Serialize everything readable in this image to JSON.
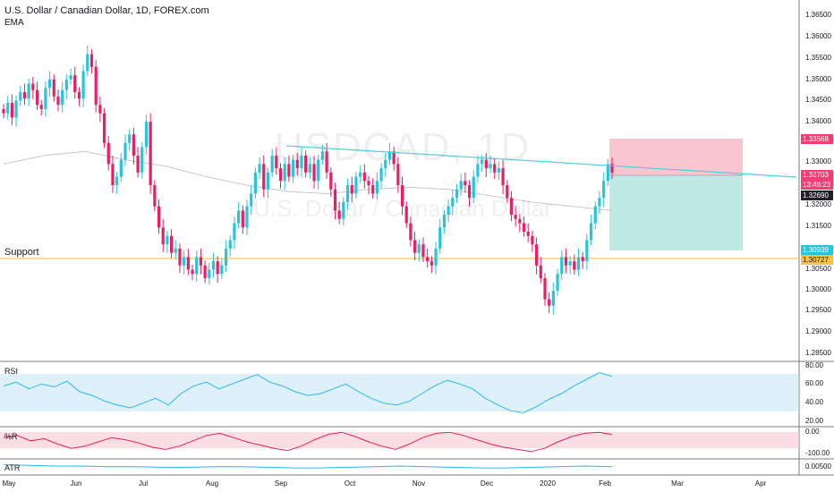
{
  "header": {
    "symbol_line": "U.S. Dollar / Canadian Dollar, 1D, FOREX.com",
    "indicator": "EMA"
  },
  "watermark": {
    "ticker": "USDCAD, 1D",
    "name": "U.S. Dollar / Canadian Dollar"
  },
  "annotations": {
    "support_label": "Support"
  },
  "price_axis": {
    "labels": [
      "1.36500",
      "1.36000",
      "1.35500",
      "1.35000",
      "1.34500",
      "1.34000",
      "1.33500",
      "1.33000",
      "1.32000",
      "1.31500",
      "1.30500",
      "1.30000",
      "1.29500",
      "1.29000",
      "1.28500"
    ]
  },
  "price_badges": [
    {
      "text": "1.33568",
      "color": "#f23f73"
    },
    {
      "text": "1.32703",
      "color": "#f23f73"
    },
    {
      "text": "13:48:23",
      "color": "#f23f73"
    },
    {
      "text": "1.32690",
      "color": "#1f1f29"
    },
    {
      "text": "1.30939",
      "color": "#26c6da"
    },
    {
      "text": "1.30727",
      "color": "#f5c242"
    }
  ],
  "panes": {
    "rsi": {
      "label": "RSI",
      "axis": [
        "80.00",
        "60.00",
        "40.00",
        "20.00"
      ]
    },
    "wr": {
      "label": "%R",
      "axis": [
        "0.00",
        "-100.00"
      ]
    },
    "atr": {
      "label": "ATR",
      "axis": [
        "0.00500"
      ]
    }
  },
  "time_axis": [
    "May",
    "Jun",
    "Jul",
    "Aug",
    "Sep",
    "Oct",
    "Nov",
    "Dec",
    "2020",
    "Feb",
    "Mar",
    "Apr"
  ],
  "colors": {
    "up": "#26c6da",
    "down": "#e91e63",
    "support": "#f5b942",
    "trendline": "#4dd0e1",
    "stop_zone": "#f8bbc5",
    "target_zone": "#b2e4e0",
    "ema": "#c7c7c7"
  },
  "chart_data": {
    "type": "candlestick",
    "symbol": "USDCAD",
    "interval": "1D",
    "ylim": [
      1.285,
      1.365
    ],
    "support_level": 1.30727,
    "trendline": {
      "from": 1.3345,
      "to": 1.3275
    },
    "position": {
      "stop": 1.33568,
      "entry": 1.32703,
      "target": 1.30939
    },
    "closes": [
      1.342,
      1.3445,
      1.341,
      1.345,
      1.347,
      1.3455,
      1.349,
      1.3475,
      1.344,
      1.343,
      1.348,
      1.35,
      1.346,
      1.344,
      1.3475,
      1.35,
      1.351,
      1.347,
      1.3455,
      1.352,
      1.356,
      1.353,
      1.344,
      1.342,
      1.335,
      1.33,
      1.325,
      1.327,
      1.331,
      1.335,
      1.337,
      1.332,
      1.328,
      1.334,
      1.34,
      1.325,
      1.32,
      1.315,
      1.311,
      1.313,
      1.309,
      1.31,
      1.306,
      1.308,
      1.305,
      1.304,
      1.308,
      1.306,
      1.303,
      1.305,
      1.307,
      1.304,
      1.306,
      1.31,
      1.312,
      1.316,
      1.319,
      1.315,
      1.32,
      1.323,
      1.328,
      1.33,
      1.324,
      1.328,
      1.332,
      1.329,
      1.326,
      1.33,
      1.327,
      1.331,
      1.329,
      1.332,
      1.328,
      1.33,
      1.326,
      1.331,
      1.333,
      1.328,
      1.324,
      1.319,
      1.317,
      1.321,
      1.325,
      1.323,
      1.327,
      1.328,
      1.326,
      1.325,
      1.323,
      1.326,
      1.329,
      1.331,
      1.333,
      1.33,
      1.325,
      1.32,
      1.316,
      1.312,
      1.309,
      1.311,
      1.308,
      1.307,
      1.306,
      1.31,
      1.315,
      1.318,
      1.32,
      1.322,
      1.324,
      1.326,
      1.325,
      1.322,
      1.327,
      1.33,
      1.331,
      1.329,
      1.33,
      1.328,
      1.329,
      1.325,
      1.322,
      1.318,
      1.317,
      1.316,
      1.314,
      1.313,
      1.311,
      1.306,
      1.303,
      1.298,
      1.2965,
      1.3,
      1.304,
      1.308,
      1.306,
      1.307,
      1.305,
      1.308,
      1.307,
      1.312,
      1.316,
      1.32,
      1.322,
      1.326,
      1.33,
      1.328
    ],
    "ema": [
      1.33,
      1.332,
      1.333,
      1.331,
      1.3295,
      1.327,
      1.325,
      1.3235,
      1.323,
      1.324,
      1.3245,
      1.324,
      1.3225,
      1.321,
      1.32,
      1.319
    ],
    "indicators": {
      "rsi": [
        58,
        62,
        55,
        60,
        57,
        63,
        52,
        48,
        42,
        38,
        35,
        40,
        45,
        38,
        50,
        58,
        62,
        55,
        60,
        65,
        70,
        62,
        58,
        52,
        48,
        50,
        55,
        60,
        52,
        45,
        40,
        38,
        42,
        50,
        58,
        64,
        60,
        55,
        45,
        38,
        32,
        30,
        36,
        44,
        50,
        58,
        65,
        72,
        68
      ],
      "williams_r": [
        -30,
        -20,
        -45,
        -35,
        -60,
        -80,
        -70,
        -50,
        -30,
        -40,
        -55,
        -75,
        -85,
        -70,
        -45,
        -20,
        -10,
        -30,
        -50,
        -65,
        -80,
        -90,
        -70,
        -40,
        -15,
        -5,
        -25,
        -50,
        -70,
        -85,
        -60,
        -30,
        -10,
        -5,
        -20,
        -40,
        -60,
        -75,
        -85,
        -95,
        -80,
        -50,
        -25,
        -10,
        -5,
        -15
      ],
      "atr": [
        0.0052,
        0.0051,
        0.005,
        0.005,
        0.0049,
        0.0049,
        0.0048,
        0.0048,
        0.0049,
        0.0049,
        0.0048,
        0.0047,
        0.0047,
        0.0048,
        0.0049,
        0.005,
        0.0049,
        0.0048,
        0.0047,
        0.0047,
        0.0048,
        0.0049,
        0.005,
        0.0049
      ]
    }
  }
}
